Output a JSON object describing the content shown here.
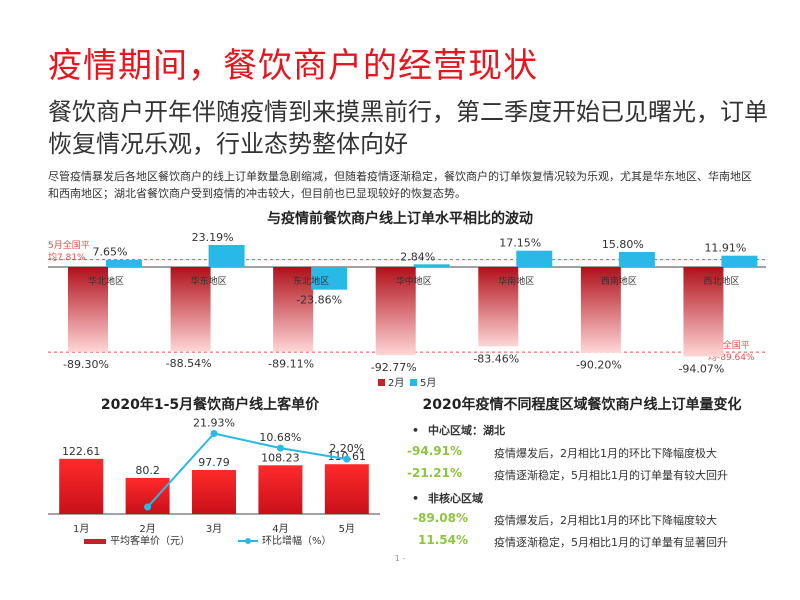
{
  "page": {
    "title": "疫情期间，餐饮商户的经营现状",
    "subtitle": "餐饮商户开年伴随疫情到来摸黑前行，第二季度开始已见曙光，订单恢复情况乐观，行业态势整体向好",
    "description": "尽管疫情暴发后各地区餐饮商户的线上订单数量急剧缩减，但随着疫情逐渐稳定，餐饮商户的订单恢复情况较为乐观，尤其是华东地区、华南地区和西南地区；湖北省餐饮商户受到疫情的冲击较大，但目前也已显现较好的恢复态势。",
    "page_number": "1 -"
  },
  "chart_data": [
    {
      "type": "bar",
      "title": "与疫情前餐饮商户线上订单水平相比的波动",
      "categories": [
        "华北地区",
        "华东地区",
        "东北地区",
        "华中地区",
        "华南地区",
        "西南地区",
        "西北地区"
      ],
      "series": [
        {
          "name": "2月",
          "color": "#c8202a",
          "values": [
            -89.3,
            -88.54,
            -89.11,
            -92.77,
            -83.46,
            -90.2,
            -94.07
          ],
          "labels": [
            "-89.30%",
            "-88.54%",
            "-89.11%",
            "-92.77%",
            "-83.46%",
            "-90.20%",
            "-94.07%"
          ]
        },
        {
          "name": "5月",
          "color": "#29b9e6",
          "values": [
            7.65,
            23.19,
            -23.86,
            2.84,
            17.15,
            15.8,
            11.91
          ],
          "labels": [
            "7.65%",
            "23.19%",
            "-23.86%",
            "2.84%",
            "17.15%",
            "15.80%",
            "11.91%"
          ]
        }
      ],
      "reference_lines": [
        {
          "label_lines": [
            "5月全国平",
            "均7.81%"
          ],
          "value": 7.81,
          "color": "#e05050"
        },
        {
          "label_lines": [
            "2月全国平",
            "均-89.64%"
          ],
          "value": -89.64,
          "color": "#e05050"
        }
      ],
      "legend": [
        "2月",
        "5月"
      ],
      "legend_position": "bottom"
    },
    {
      "type": "bar",
      "title": "2020年1-5月餐饮商户线上客单价",
      "categories": [
        "1月",
        "2月",
        "3月",
        "4月",
        "5月"
      ],
      "series": [
        {
          "name": "平均客单价（元）",
          "color": "#c8202a",
          "values": [
            122.61,
            80.2,
            97.79,
            108.23,
            110.61
          ],
          "labels": [
            "122.61",
            "80.2",
            "97.79",
            "108.23",
            "110.61"
          ]
        },
        {
          "name": "环比增幅（%）",
          "type": "line",
          "color": "#29b9e6",
          "values": [
            null,
            -34.6,
            21.93,
            10.68,
            2.2
          ],
          "labels": [
            "",
            "",
            "21.93%",
            "10.68%",
            "2.20%"
          ]
        }
      ],
      "legend": [
        "平均客单价（元）",
        "环比增幅（%）"
      ],
      "legend_position": "bottom"
    }
  ],
  "panel": {
    "title": "2020年疫情不同程度区域餐饮商户线上订单量变化",
    "sections": [
      {
        "bullet": "•",
        "heading": "中心区域：湖北",
        "rows": [
          {
            "value": "-94.91%",
            "text": "疫情爆发后，2月相比1月的环比下降幅度极大"
          },
          {
            "value": "-21.21%",
            "text": "疫情逐渐稳定，5月相比1月的订单量有较大回升"
          }
        ]
      },
      {
        "bullet": "•",
        "heading": "非核心区域",
        "rows": [
          {
            "value": "-89.08%",
            "text": "疫情爆发后，2月相比1月的环比下降幅度较大"
          },
          {
            "value": "11.54%",
            "text": "疫情逐渐稳定，5月相比1月的订单量有显著回升"
          }
        ]
      }
    ]
  }
}
